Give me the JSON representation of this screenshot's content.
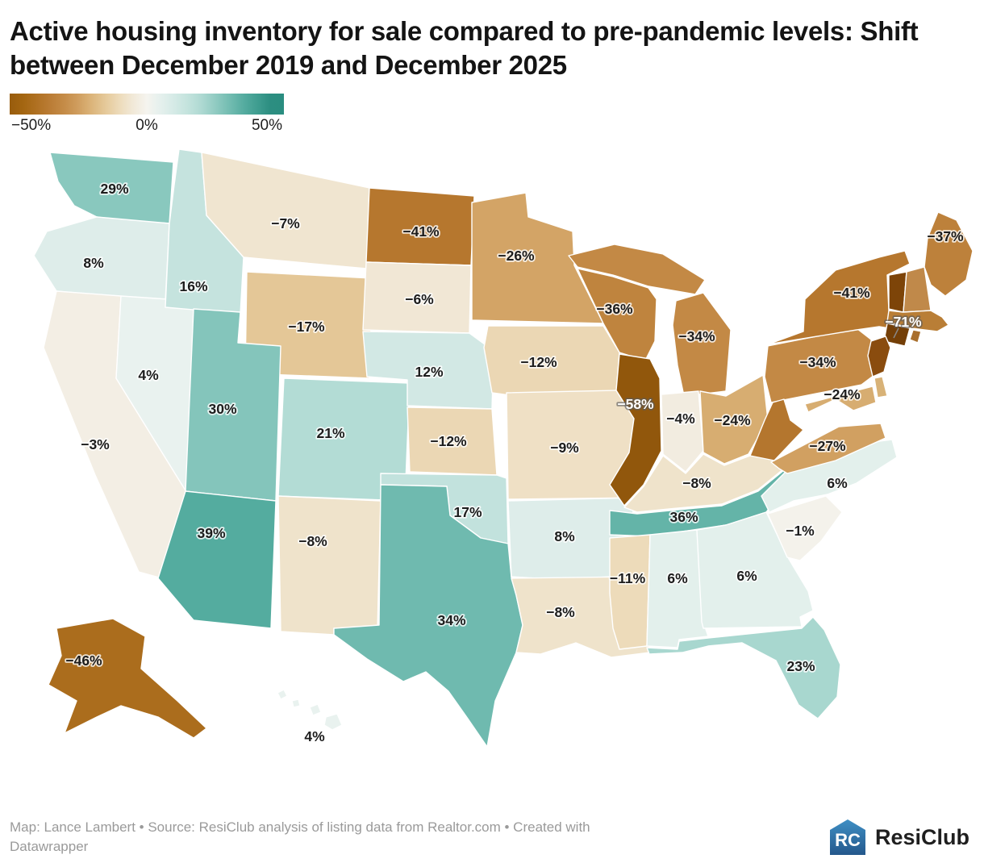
{
  "title": "Active housing inventory for sale compared to pre-pandemic levels: Shift between December 2019 and December 2025",
  "legend": {
    "min_label": "−50%",
    "mid_label": "0%",
    "max_label": "50%"
  },
  "footer": {
    "credit_line1": "Map: Lance Lambert • Source: ResiClub analysis of listing data from Realtor.com • Created with",
    "credit_line2": "Datawrapper",
    "logo_text": "ResiClub"
  },
  "chart_data": {
    "type": "heatmap",
    "subtype": "us-state-choropleth",
    "title": "Active housing inventory for sale compared to pre-pandemic levels: Shift between December 2019 and December 2025",
    "unit": "%",
    "legend": {
      "min": -50,
      "mid": 0,
      "max": 50,
      "negative_color": "#8a4a0a",
      "zero_color": "#f7f6f1",
      "positive_color": "#1b7f72"
    },
    "states": [
      {
        "code": "WA",
        "name": "Washington",
        "value": 29
      },
      {
        "code": "OR",
        "name": "Oregon",
        "value": 8
      },
      {
        "code": "CA",
        "name": "California",
        "value": -3
      },
      {
        "code": "NV",
        "name": "Nevada",
        "value": 4
      },
      {
        "code": "ID",
        "name": "Idaho",
        "value": 16
      },
      {
        "code": "MT",
        "name": "Montana",
        "value": -7
      },
      {
        "code": "WY",
        "name": "Wyoming",
        "value": -17
      },
      {
        "code": "UT",
        "name": "Utah",
        "value": 30
      },
      {
        "code": "CO",
        "name": "Colorado",
        "value": 21
      },
      {
        "code": "AZ",
        "name": "Arizona",
        "value": 39
      },
      {
        "code": "NM",
        "name": "New Mexico",
        "value": -8
      },
      {
        "code": "ND",
        "name": "North Dakota",
        "value": -41
      },
      {
        "code": "SD",
        "name": "South Dakota",
        "value": -6
      },
      {
        "code": "NE",
        "name": "Nebraska",
        "value": 12
      },
      {
        "code": "KS",
        "name": "Kansas",
        "value": -12
      },
      {
        "code": "OK",
        "name": "Oklahoma",
        "value": 17
      },
      {
        "code": "TX",
        "name": "Texas",
        "value": 34
      },
      {
        "code": "MN",
        "name": "Minnesota",
        "value": -26
      },
      {
        "code": "IA",
        "name": "Iowa",
        "value": -12
      },
      {
        "code": "MO",
        "name": "Missouri",
        "value": -9
      },
      {
        "code": "AR",
        "name": "Arkansas",
        "value": 8
      },
      {
        "code": "LA",
        "name": "Louisiana",
        "value": -8
      },
      {
        "code": "WI",
        "name": "Wisconsin",
        "value": -36
      },
      {
        "code": "IL",
        "name": "Illinois",
        "value": -58
      },
      {
        "code": "MI",
        "name": "Michigan",
        "value": -34
      },
      {
        "code": "IN",
        "name": "Indiana",
        "value": -4
      },
      {
        "code": "OH",
        "name": "Ohio",
        "value": -24
      },
      {
        "code": "KY",
        "name": "Kentucky",
        "value": -8
      },
      {
        "code": "TN",
        "name": "Tennessee",
        "value": 36
      },
      {
        "code": "MS",
        "name": "Mississippi",
        "value": -11
      },
      {
        "code": "AL",
        "name": "Alabama",
        "value": 6
      },
      {
        "code": "GA",
        "name": "Georgia",
        "value": 6
      },
      {
        "code": "FL",
        "name": "Florida",
        "value": 23
      },
      {
        "code": "SC",
        "name": "South Carolina",
        "value": -1
      },
      {
        "code": "NC",
        "name": "North Carolina",
        "value": 6
      },
      {
        "code": "VA",
        "name": "Virginia",
        "value": -27
      },
      {
        "code": "PA",
        "name": "Pennsylvania",
        "value": -34
      },
      {
        "code": "NY",
        "name": "New York",
        "value": -41
      },
      {
        "code": "MD",
        "name": "Maryland",
        "value": -24
      },
      {
        "code": "CT",
        "name": "Connecticut",
        "value": -71
      },
      {
        "code": "ME",
        "name": "Maine",
        "value": -37
      },
      {
        "code": "AK",
        "name": "Alaska",
        "value": -46
      },
      {
        "code": "HI",
        "name": "Hawaii",
        "value": 4
      }
    ],
    "unlabeled_states": [
      {
        "code": "VT",
        "name": "Vermont",
        "color": "#7d4408"
      },
      {
        "code": "NH",
        "name": "New Hampshire",
        "color": "#c0894a"
      },
      {
        "code": "MA",
        "name": "Massachusetts",
        "color": "#b97e36"
      },
      {
        "code": "RI",
        "name": "Rhode Island",
        "color": "#a96f2d"
      },
      {
        "code": "NJ",
        "name": "New Jersey",
        "color": "#8a4c0e"
      },
      {
        "code": "DE",
        "name": "Delaware",
        "color": "#d8b277"
      },
      {
        "code": "WV",
        "name": "West Virginia",
        "color": "#b4762e"
      }
    ]
  }
}
